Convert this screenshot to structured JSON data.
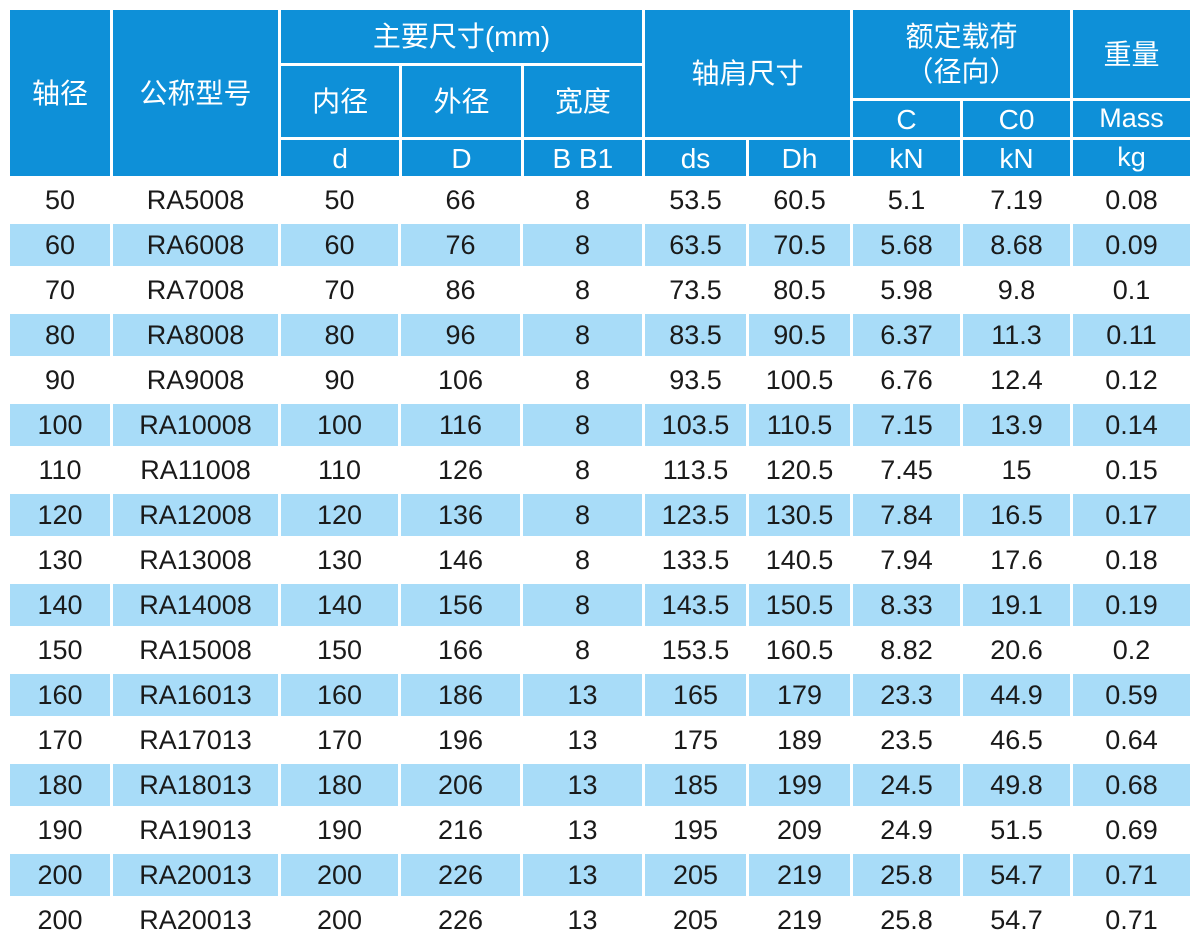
{
  "colors": {
    "header_blue": "#0e90d8",
    "stripe_blue": "#a8dcf8",
    "text_dark": "#1a1a1a"
  },
  "table": {
    "header": {
      "shaft_diameter": "轴径",
      "model": "公称型号",
      "main_dims": {
        "label": "主要尺寸(mm)",
        "sub": [
          {
            "label": "内径",
            "symbol": "d"
          },
          {
            "label": "外径",
            "symbol": "D"
          },
          {
            "label": "宽度",
            "symbol": "B B1"
          }
        ]
      },
      "shoulder": {
        "label": "轴肩尺寸",
        "sub": [
          {
            "symbol": "ds"
          },
          {
            "symbol": "Dh"
          }
        ]
      },
      "load": {
        "label_line1": "额定载荷",
        "label_line2": "（径向）",
        "sub": [
          {
            "label": "C",
            "unit": "kN"
          },
          {
            "label": "C0",
            "unit": "kN"
          }
        ]
      },
      "weight": {
        "label": "重量",
        "sub_label": "Mass",
        "unit": "kg"
      }
    },
    "rows": [
      [
        "50",
        "RA5008",
        "50",
        "66",
        "8",
        "53.5",
        "60.5",
        "5.1",
        "7.19",
        "0.08"
      ],
      [
        "60",
        "RA6008",
        "60",
        "76",
        "8",
        "63.5",
        "70.5",
        "5.68",
        "8.68",
        "0.09"
      ],
      [
        "70",
        "RA7008",
        "70",
        "86",
        "8",
        "73.5",
        "80.5",
        "5.98",
        "9.8",
        "0.1"
      ],
      [
        "80",
        "RA8008",
        "80",
        "96",
        "8",
        "83.5",
        "90.5",
        "6.37",
        "11.3",
        "0.11"
      ],
      [
        "90",
        "RA9008",
        "90",
        "106",
        "8",
        "93.5",
        "100.5",
        "6.76",
        "12.4",
        "0.12"
      ],
      [
        "100",
        "RA10008",
        "100",
        "116",
        "8",
        "103.5",
        "110.5",
        "7.15",
        "13.9",
        "0.14"
      ],
      [
        "110",
        "RA11008",
        "110",
        "126",
        "8",
        "113.5",
        "120.5",
        "7.45",
        "15",
        "0.15"
      ],
      [
        "120",
        "RA12008",
        "120",
        "136",
        "8",
        "123.5",
        "130.5",
        "7.84",
        "16.5",
        "0.17"
      ],
      [
        "130",
        "RA13008",
        "130",
        "146",
        "8",
        "133.5",
        "140.5",
        "7.94",
        "17.6",
        "0.18"
      ],
      [
        "140",
        "RA14008",
        "140",
        "156",
        "8",
        "143.5",
        "150.5",
        "8.33",
        "19.1",
        "0.19"
      ],
      [
        "150",
        "RA15008",
        "150",
        "166",
        "8",
        "153.5",
        "160.5",
        "8.82",
        "20.6",
        "0.2"
      ],
      [
        "160",
        "RA16013",
        "160",
        "186",
        "13",
        "165",
        "179",
        "23.3",
        "44.9",
        "0.59"
      ],
      [
        "170",
        "RA17013",
        "170",
        "196",
        "13",
        "175",
        "189",
        "23.5",
        "46.5",
        "0.64"
      ],
      [
        "180",
        "RA18013",
        "180",
        "206",
        "13",
        "185",
        "199",
        "24.5",
        "49.8",
        "0.68"
      ],
      [
        "190",
        "RA19013",
        "190",
        "216",
        "13",
        "195",
        "209",
        "24.9",
        "51.5",
        "0.69"
      ],
      [
        "200",
        "RA20013",
        "200",
        "226",
        "13",
        "205",
        "219",
        "25.8",
        "54.7",
        "0.71"
      ],
      [
        "200",
        "RA20013",
        "200",
        "226",
        "13",
        "205",
        "219",
        "25.8",
        "54.7",
        "0.71"
      ]
    ]
  }
}
